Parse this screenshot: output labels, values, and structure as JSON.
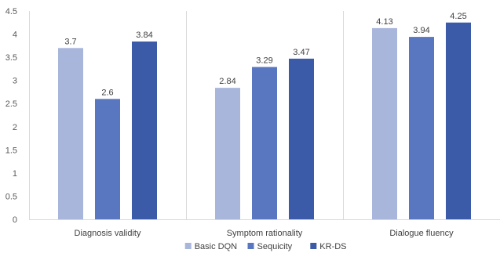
{
  "chart_data": {
    "type": "bar",
    "categories": [
      "Diagnosis validity",
      "Symptom rationality",
      "Dialogue fluency"
    ],
    "series": [
      {
        "name": "Basic DQN",
        "values": [
          3.7,
          2.84,
          4.13
        ],
        "color": "#a9b6dc"
      },
      {
        "name": "Sequicity",
        "values": [
          2.6,
          3.29,
          3.94
        ],
        "color": "#5877c0"
      },
      {
        "name": "KR-DS",
        "values": [
          3.84,
          3.47,
          4.25
        ],
        "color": "#3b5aa8"
      }
    ],
    "ylim": [
      0,
      4.5
    ],
    "yticks": [
      "0",
      "0.5",
      "1",
      "1.5",
      "2",
      "2.5",
      "3",
      "3.5",
      "4",
      "4.5"
    ],
    "legend_position": "bottom",
    "grid": "category-separators",
    "title": "",
    "xlabel": "",
    "ylabel": ""
  }
}
